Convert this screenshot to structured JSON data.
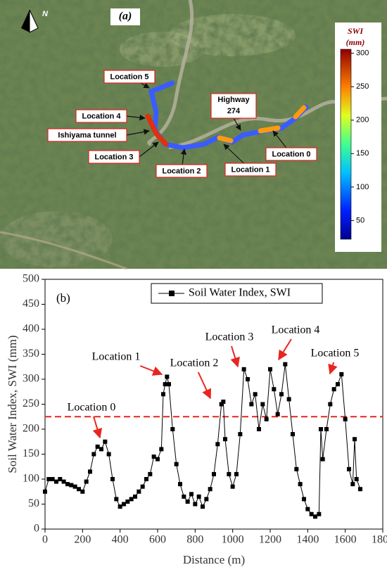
{
  "map": {
    "panel_label": "(a)",
    "north": "N",
    "colorbar": {
      "title": [
        "SWI",
        "(mm)"
      ],
      "lim": [
        22,
        306
      ],
      "ticks": [
        50,
        100,
        150,
        200,
        250,
        300
      ]
    },
    "labels": [
      "Location 5",
      "Location 4",
      "Ishiyama tunnel",
      "Location 3",
      "Location 2",
      "Location 1",
      "Location 0"
    ],
    "highway_label": [
      "Highway",
      "274"
    ]
  },
  "chart_data": {
    "type": "line",
    "panel_label": "(b)",
    "x_label": "Distance (m)",
    "y_label": "Soil Water Index, SWI (mm)",
    "xlim": [
      0,
      1800
    ],
    "xticks": [
      0,
      200,
      400,
      600,
      800,
      1000,
      1200,
      1400,
      1600,
      1800
    ],
    "ylim": [
      0,
      500
    ],
    "yticks": [
      0,
      50,
      100,
      150,
      200,
      250,
      300,
      350,
      400,
      450,
      500
    ],
    "legend": "top",
    "x": [
      0,
      20,
      40,
      60,
      80,
      100,
      120,
      140,
      160,
      180,
      200,
      220,
      240,
      260,
      280,
      300,
      320,
      340,
      360,
      380,
      400,
      420,
      440,
      460,
      480,
      500,
      520,
      540,
      560,
      580,
      600,
      620,
      630,
      640,
      650,
      660,
      680,
      700,
      720,
      740,
      760,
      780,
      800,
      820,
      840,
      860,
      880,
      900,
      920,
      940,
      950,
      960,
      980,
      1000,
      1020,
      1040,
      1060,
      1080,
      1100,
      1120,
      1140,
      1160,
      1180,
      1200,
      1220,
      1240,
      1260,
      1280,
      1300,
      1320,
      1340,
      1360,
      1380,
      1400,
      1420,
      1440,
      1460,
      1470,
      1480,
      1500,
      1520,
      1540,
      1560,
      1580,
      1600,
      1620,
      1640,
      1650,
      1660,
      1680
    ],
    "series": [
      {
        "name": "Soil Water Index, SWI",
        "color": "#000000",
        "values": [
          75,
          100,
          100,
          95,
          100,
          95,
          90,
          88,
          85,
          80,
          75,
          95,
          115,
          150,
          165,
          160,
          175,
          150,
          100,
          60,
          45,
          50,
          55,
          60,
          65,
          75,
          85,
          100,
          110,
          145,
          140,
          160,
          270,
          290,
          305,
          290,
          200,
          130,
          90,
          65,
          55,
          70,
          50,
          65,
          45,
          60,
          80,
          110,
          170,
          250,
          255,
          180,
          110,
          85,
          110,
          190,
          320,
          300,
          250,
          270,
          200,
          250,
          220,
          320,
          280,
          230,
          270,
          330,
          260,
          190,
          120,
          90,
          60,
          40,
          30,
          25,
          30,
          200,
          140,
          200,
          250,
          280,
          290,
          310,
          220,
          120,
          90,
          180,
          100,
          80
        ]
      }
    ],
    "hline": {
      "value": 225,
      "color": "#e8251f"
    },
    "annotations": [
      "Location 0",
      "Location 1",
      "Location 2",
      "Location 3",
      "Location 4",
      "Location 5"
    ],
    "annotation_color": "#e8251f"
  }
}
